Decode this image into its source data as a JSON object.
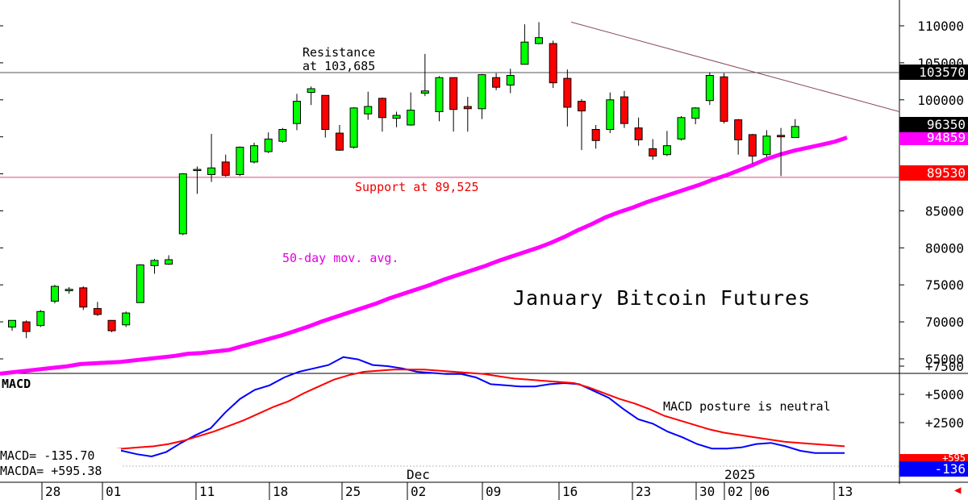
{
  "chart_data": [
    {
      "type": "candlestick",
      "title": "January Bitcoin Futures",
      "ylim": [
        62000,
        113000
      ],
      "y_ticks": [
        "110000",
        "105000",
        "100000",
        "95000",
        "90000",
        "85000",
        "80000",
        "75000",
        "70000",
        "65000"
      ],
      "x_tick_labels": [
        "28",
        "01",
        "11",
        "18",
        "25",
        "02",
        "09",
        "16",
        "23",
        "30",
        "02",
        "06",
        "13"
      ],
      "x_month_labels": [
        "Dec",
        "2025"
      ],
      "candles": [
        {
          "o": 69300,
          "h": 70200,
          "l": 68800,
          "c": 70200
        },
        {
          "o": 70000,
          "h": 70200,
          "l": 67800,
          "c": 68700
        },
        {
          "o": 69500,
          "h": 71600,
          "l": 69300,
          "c": 71400
        },
        {
          "o": 72800,
          "h": 75000,
          "l": 72500,
          "c": 74800
        },
        {
          "o": 74200,
          "h": 74700,
          "l": 73800,
          "c": 74400
        },
        {
          "o": 74600,
          "h": 74800,
          "l": 71600,
          "c": 72000
        },
        {
          "o": 71800,
          "h": 72700,
          "l": 70800,
          "c": 71000
        },
        {
          "o": 70200,
          "h": 70200,
          "l": 68600,
          "c": 68800
        },
        {
          "o": 69600,
          "h": 71400,
          "l": 69300,
          "c": 71200
        },
        {
          "o": 72600,
          "h": 77800,
          "l": 72600,
          "c": 77700
        },
        {
          "o": 77600,
          "h": 78500,
          "l": 76500,
          "c": 78300
        },
        {
          "o": 77800,
          "h": 79000,
          "l": 77700,
          "c": 78400
        },
        {
          "o": 81900,
          "h": 90100,
          "l": 81700,
          "c": 90000
        },
        {
          "o": 90500,
          "h": 91000,
          "l": 87300,
          "c": 90600
        },
        {
          "o": 89900,
          "h": 95400,
          "l": 88900,
          "c": 90800
        },
        {
          "o": 91600,
          "h": 92600,
          "l": 89600,
          "c": 89800
        },
        {
          "o": 89900,
          "h": 93700,
          "l": 89700,
          "c": 93600
        },
        {
          "o": 91600,
          "h": 94200,
          "l": 91400,
          "c": 93800
        },
        {
          "o": 93000,
          "h": 95600,
          "l": 92800,
          "c": 94700
        },
        {
          "o": 94400,
          "h": 96200,
          "l": 94200,
          "c": 96000
        },
        {
          "o": 96800,
          "h": 100800,
          "l": 95900,
          "c": 99800
        },
        {
          "o": 101000,
          "h": 101800,
          "l": 99300,
          "c": 101500
        },
        {
          "o": 100600,
          "h": 100600,
          "l": 94900,
          "c": 96000
        },
        {
          "o": 95500,
          "h": 96600,
          "l": 93100,
          "c": 93200
        },
        {
          "o": 93600,
          "h": 99000,
          "l": 93400,
          "c": 98900
        },
        {
          "o": 98100,
          "h": 101100,
          "l": 97300,
          "c": 99100
        },
        {
          "o": 100200,
          "h": 100300,
          "l": 95700,
          "c": 97600
        },
        {
          "o": 97500,
          "h": 98400,
          "l": 96300,
          "c": 97900
        },
        {
          "o": 96600,
          "h": 101000,
          "l": 96500,
          "c": 98600
        },
        {
          "o": 100900,
          "h": 106200,
          "l": 100500,
          "c": 101200
        },
        {
          "o": 98400,
          "h": 103200,
          "l": 97100,
          "c": 103000
        },
        {
          "o": 103000,
          "h": 103000,
          "l": 95700,
          "c": 98700
        },
        {
          "o": 99100,
          "h": 100400,
          "l": 95700,
          "c": 98800
        },
        {
          "o": 98800,
          "h": 103500,
          "l": 97400,
          "c": 103400
        },
        {
          "o": 103000,
          "h": 103600,
          "l": 101300,
          "c": 101700
        },
        {
          "o": 102000,
          "h": 104200,
          "l": 100900,
          "c": 103300
        },
        {
          "o": 104800,
          "h": 110200,
          "l": 104800,
          "c": 107800
        },
        {
          "o": 107600,
          "h": 110500,
          "l": 107500,
          "c": 108400
        },
        {
          "o": 107600,
          "h": 108000,
          "l": 101600,
          "c": 102300
        },
        {
          "o": 102900,
          "h": 104100,
          "l": 96400,
          "c": 99000
        },
        {
          "o": 99800,
          "h": 100100,
          "l": 93200,
          "c": 98500
        },
        {
          "o": 96000,
          "h": 96600,
          "l": 93400,
          "c": 94500
        },
        {
          "o": 96000,
          "h": 101000,
          "l": 95500,
          "c": 100000
        },
        {
          "o": 100400,
          "h": 101200,
          "l": 96200,
          "c": 96800
        },
        {
          "o": 96200,
          "h": 97600,
          "l": 93800,
          "c": 94600
        },
        {
          "o": 93400,
          "h": 94700,
          "l": 91900,
          "c": 92400
        },
        {
          "o": 92600,
          "h": 95800,
          "l": 92400,
          "c": 93800
        },
        {
          "o": 94700,
          "h": 97800,
          "l": 94500,
          "c": 97600
        },
        {
          "o": 97500,
          "h": 99000,
          "l": 96700,
          "c": 98900
        },
        {
          "o": 99900,
          "h": 103700,
          "l": 99300,
          "c": 103300
        },
        {
          "o": 103100,
          "h": 103600,
          "l": 96800,
          "c": 97100
        },
        {
          "o": 97300,
          "h": 97400,
          "l": 92600,
          "c": 94600
        },
        {
          "o": 95300,
          "h": 95400,
          "l": 91400,
          "c": 92400
        },
        {
          "o": 92600,
          "h": 95900,
          "l": 92300,
          "c": 95100
        },
        {
          "o": 95200,
          "h": 96200,
          "l": 89700,
          "c": 95000
        },
        {
          "o": 94900,
          "h": 97400,
          "l": 94900,
          "c": 96400
        }
      ],
      "moving_average": {
        "name": "50-day mov. avg.",
        "values": [
          63000,
          63200,
          63400,
          63600,
          63800,
          64000,
          64300,
          64400,
          64500,
          64600,
          64800,
          65000,
          65200,
          65400,
          65700,
          65800,
          66000,
          66200,
          66700,
          67200,
          67700,
          68200,
          68800,
          69400,
          70100,
          70700,
          71300,
          71900,
          72500,
          73200,
          73800,
          74400,
          75000,
          75700,
          76300,
          76900,
          77500,
          78200,
          78800,
          79400,
          80000,
          80700,
          81500,
          82400,
          83200,
          84100,
          84800,
          85400,
          86100,
          86700,
          87300,
          87900,
          88500,
          89200,
          89800,
          90500,
          91200,
          92000,
          92600,
          93100,
          93500,
          93900,
          94300,
          94900
        ]
      },
      "resistance": {
        "value": 103685,
        "label_line1": "Resistance",
        "label_line2": "at 103,685"
      },
      "support": {
        "value": 89525,
        "label": "Support at 89,525"
      },
      "downtrend_line": {
        "from": 110500,
        "to": 98400
      },
      "price_boxes": [
        {
          "label": "103570",
          "value": 103570,
          "color": "black"
        },
        {
          "label": "96350",
          "value": 96350,
          "color": "black"
        },
        {
          "label": "94859",
          "value": 94859,
          "color": "magenta"
        },
        {
          "label": "89530",
          "value": 89530,
          "color": "red"
        }
      ],
      "annotations": [
        "50-day mov. avg."
      ]
    },
    {
      "type": "line",
      "title": "MACD",
      "y_ticks": [
        "+7500",
        "+5000",
        "+2500"
      ],
      "series": [
        {
          "name": "MACD",
          "color": "#0000ff",
          "values": [
            -1800,
            -1000,
            -300,
            0,
            100,
            0,
            -300,
            -500,
            -100,
            700,
            1400,
            2000,
            3400,
            4600,
            5400,
            5800,
            6500,
            7000,
            7300,
            7600,
            8300,
            8100,
            7600,
            7500,
            7300,
            7000,
            6900,
            6800,
            6800,
            6500,
            5900,
            5800,
            5700,
            5700,
            5900,
            6000,
            5900,
            5300,
            4700,
            3700,
            2800,
            2400,
            1700,
            1200,
            600,
            200,
            200,
            300,
            600,
            700,
            400,
            0,
            -200,
            -200,
            -200
          ]
        },
        {
          "name": "MACDA",
          "color": "#ff0000",
          "values": [
            -1200,
            -900,
            -400,
            0,
            100,
            200,
            300,
            400,
            600,
            900,
            1300,
            1700,
            2200,
            2700,
            3300,
            3900,
            4400,
            5100,
            5700,
            6300,
            6700,
            7000,
            7100,
            7200,
            7200,
            7200,
            7100,
            7000,
            6900,
            6800,
            6600,
            6400,
            6300,
            6200,
            6100,
            6000,
            5600,
            5100,
            4600,
            4200,
            3700,
            3100,
            2700,
            2300,
            1900,
            1600,
            1400,
            1200,
            1000,
            800,
            700,
            600,
            500,
            400
          ]
        }
      ],
      "readout": {
        "macd_label": "MACD=",
        "macd_value": "-135.70",
        "macda_label": "MACDA=",
        "macda_value": "+595.38"
      },
      "right_boxes": [
        {
          "label": "+595",
          "color": "red"
        },
        {
          "label": "-136",
          "color": "blue"
        }
      ],
      "annotation": "MACD posture is neutral"
    }
  ]
}
